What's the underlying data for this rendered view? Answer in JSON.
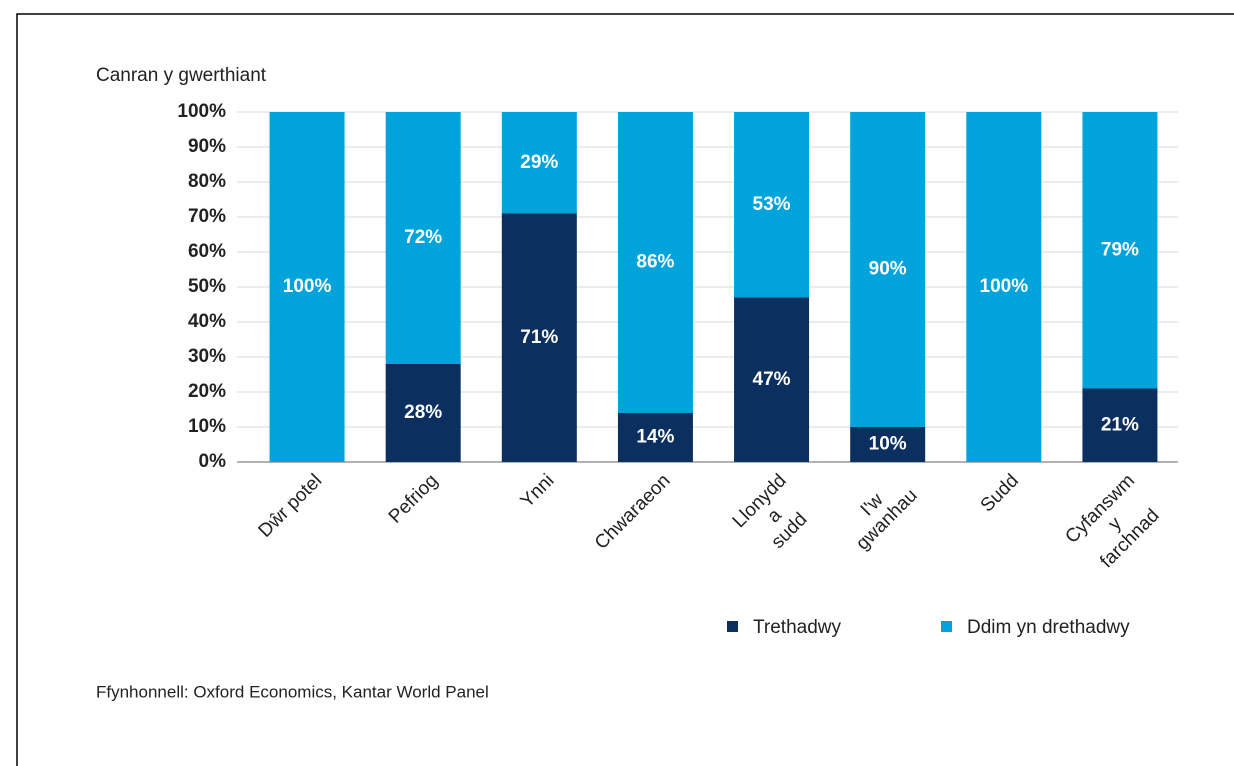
{
  "chart_data": {
    "type": "stacked_bar",
    "y_axis_label": "Canran y gwerthiant",
    "categories": [
      [
        "Dŵr potel"
      ],
      [
        "Pefriog"
      ],
      [
        "Ynni"
      ],
      [
        "Chwaraeon"
      ],
      [
        "Llonydd",
        "a",
        "sudd"
      ],
      [
        "I'w",
        "gwanhau"
      ],
      [
        "Sudd"
      ],
      [
        "Cyfanswm",
        "y",
        "farchnad"
      ]
    ],
    "series": [
      {
        "name": "Trethadwy",
        "color": "#0b2f5f",
        "values": [
          0,
          28,
          71,
          14,
          47,
          10,
          0,
          21
        ],
        "value_labels": [
          null,
          "28%",
          "71%",
          "14%",
          "47%",
          "10%",
          null,
          "21%"
        ]
      },
      {
        "name": "Ddim yn drethadwy",
        "color": "#00a3da",
        "values": [
          100,
          72,
          29,
          86,
          53,
          90,
          100,
          79
        ],
        "value_labels": [
          "100%",
          "72%",
          "29%",
          "86%",
          "53%",
          "90%",
          "100%",
          "79%"
        ]
      }
    ],
    "ylim": [
      0,
      100
    ],
    "yticks": [
      {
        "value": 0,
        "label": "0%"
      },
      {
        "value": 10,
        "label": "10%"
      },
      {
        "value": 20,
        "label": "20%"
      },
      {
        "value": 30,
        "label": "30%"
      },
      {
        "value": 40,
        "label": "40%"
      },
      {
        "value": 50,
        "label": "50%"
      },
      {
        "value": 60,
        "label": "60%"
      },
      {
        "value": 70,
        "label": "70%"
      },
      {
        "value": 80,
        "label": "80%"
      },
      {
        "value": 90,
        "label": "90%"
      },
      {
        "value": 100,
        "label": "100%"
      }
    ],
    "grid": true,
    "legend": "bottom-right",
    "source": "Ffynhonnell:  Oxford Economics, Kantar World Panel"
  }
}
